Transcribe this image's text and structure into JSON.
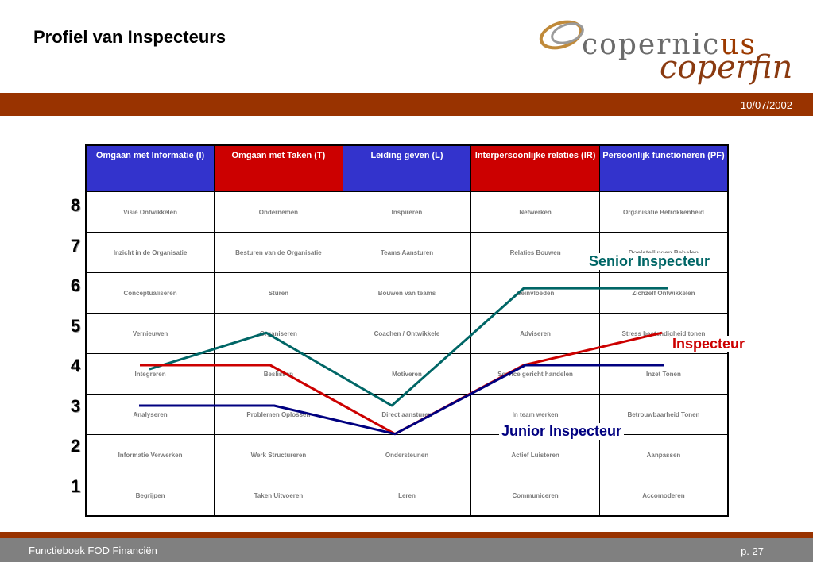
{
  "title": "Profiel van Inspecteurs",
  "logo": {
    "top_main": "copernic",
    "top_accent": "us",
    "bottom": "coperfin"
  },
  "date": "10/07/2002",
  "columns": [
    {
      "label": "Omgaan met Informatie (I)",
      "color": "#3333cc"
    },
    {
      "label": "Omgaan met Taken (T)",
      "color": "#cc0000"
    },
    {
      "label": "Leiding geven (L)",
      "color": "#3333cc"
    },
    {
      "label": "Interpersoonlijke relaties (IR)",
      "color": "#cc0000"
    },
    {
      "label": "Persoonlijk functioneren (PF)",
      "color": "#3333cc"
    }
  ],
  "levels": [
    "8",
    "7",
    "6",
    "5",
    "4",
    "3",
    "2",
    "1"
  ],
  "rows": [
    [
      "Visie Ontwikkelen",
      "Ondernemen",
      "Inspireren",
      "Netwerken",
      "Organisatie Betrokkenheid"
    ],
    [
      "Inzicht in de Organisatie",
      "Besturen van de Organisatie",
      "Teams Aansturen",
      "Relaties Bouwen",
      "Doelstellingen Behalen"
    ],
    [
      "Conceptualiseren",
      "Sturen",
      "Bouwen van teams",
      "Beinvloeden",
      "Zichzelf Ontwikkelen"
    ],
    [
      "Vernieuwen",
      "Organiseren",
      "Coachen / Ontwikkele",
      "Adviseren",
      "Stress bestendigheid tonen"
    ],
    [
      "Integreren",
      "Beslissen",
      "Motiveren",
      "Service gericht handelen",
      "Inzet Tonen"
    ],
    [
      "Analyseren",
      "Problemen Oplossen",
      "Direct aansturen",
      "In team werken",
      "Betrouwbaarheid Tonen"
    ],
    [
      "Informatie Verwerken",
      "Werk Structureren",
      "Ondersteunen",
      "Actief Luisteren",
      "Aanpassen"
    ],
    [
      "Begrijpen",
      "Taken Uitvoeren",
      "Leren",
      "Communiceren",
      "Accomoderen"
    ]
  ],
  "profiles": [
    {
      "name": "Senior Inspecteur",
      "color": "#006666",
      "values": [
        3.9,
        4.8,
        3.0,
        5.9,
        5.9
      ]
    },
    {
      "name": "Inspecteur",
      "color": "#cc0000",
      "values": [
        4.0,
        4.0,
        2.3,
        4.0,
        4.8
      ]
    },
    {
      "name": "Junior Inspecteur",
      "color": "#000080",
      "values": [
        3.0,
        3.0,
        2.3,
        4.0,
        4.0
      ]
    }
  ],
  "footer": {
    "left": "Functieboek FOD Financiën",
    "right": "p. 27"
  }
}
